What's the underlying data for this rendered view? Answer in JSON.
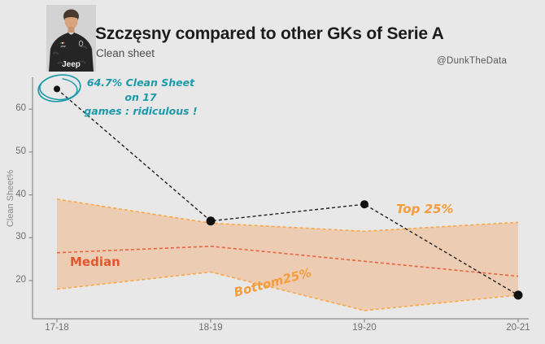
{
  "header": {
    "title": "Szczęsny compared to other GKs of Serie A",
    "subtitle": "Clean sheet",
    "credit": "@DunkTheData",
    "player_photo": "szczesny-juventus-jersey-portrait",
    "jersey_sponsor": "Jeep"
  },
  "annotation": {
    "line1": "64.7% Clean Sheet on 17",
    "line2": "games : ridiculous !"
  },
  "chart_data": {
    "type": "line",
    "title": "Szczęsny compared to other GKs of Serie A",
    "subtitle": "Clean sheet",
    "xlabel": "",
    "ylabel": "Clean Sheet%",
    "categories": [
      "17-18",
      "18-19",
      "19-20",
      "20-21"
    ],
    "yticks": [
      20,
      30,
      40,
      50,
      60
    ],
    "ylim": [
      11,
      67
    ],
    "grid": false,
    "legend": "inline-labels",
    "series": [
      {
        "name": "Szczęsny",
        "role": "main",
        "values": [
          64.7,
          33.9,
          37.8,
          16.6
        ]
      },
      {
        "name": "Top 25%",
        "role": "band-upper",
        "values": [
          39,
          33.4,
          31.5,
          33.6
        ]
      },
      {
        "name": "Median",
        "role": "median",
        "values": [
          26.5,
          28,
          24.5,
          21
        ]
      },
      {
        "name": "Bottom 25%",
        "role": "band-lower",
        "values": [
          18,
          22,
          13,
          16.6
        ]
      }
    ],
    "inline_labels": {
      "top": "Top 25%",
      "median": "Median",
      "bottom": "Bottom25%"
    },
    "annotation": "64.7% Clean Sheet on 17 games : ridiculous !"
  },
  "colors": {
    "background": "#e8e8e8",
    "accent_teal": "#1b9aaa",
    "band_fill": "#f89146",
    "band_fill_opacity": "0.32",
    "band_edge": "#f9a845",
    "median_line": "#eb6340",
    "median_label": "#e2572e",
    "quartile_label": "#f59c3c",
    "main_line": "#1f1f1f",
    "axis": "#8c8c8c"
  }
}
